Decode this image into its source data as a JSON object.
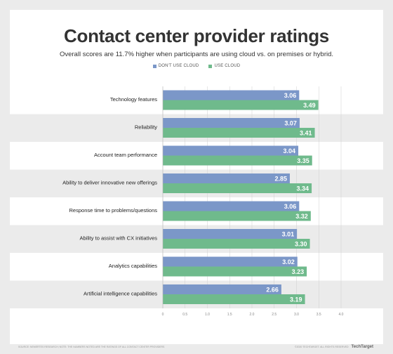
{
  "footer": {
    "source": "SOURCE: NEMERTES RESEARCH; NOTE: THE NUMBERS NOTED ARE THE RATINGS OF ALL CONTACT CENTER PROVIDERS",
    "copyright": "©2020 TECHTARGET. ALL RIGHTS RESERVED",
    "brand": "TechTarget"
  },
  "colors": {
    "no_cloud": "#7b97c8",
    "cloud": "#6fba8c",
    "band": "#ebebeb",
    "grid": "#cfcfcf"
  },
  "chart_data": {
    "type": "bar",
    "orientation": "horizontal",
    "title": "Contact center provider ratings",
    "subtitle": "Overall scores are 11.7% higher when participants are using cloud vs. on premises or hybrid.",
    "categories": [
      "Technology features",
      "Reliability",
      "Account team performance",
      "Ability to deliver innovative new offerings",
      "Response time to problems/questions",
      "Ability to assist with CX initiatives",
      "Analytics capabilities",
      "Artificial intelligence capabilities"
    ],
    "series": [
      {
        "name": "DON'T USE CLOUD",
        "values": [
          3.06,
          3.07,
          3.04,
          2.85,
          3.06,
          3.01,
          3.02,
          2.66
        ]
      },
      {
        "name": "USE CLOUD",
        "values": [
          3.49,
          3.41,
          3.35,
          3.34,
          3.32,
          3.3,
          3.23,
          3.19
        ]
      }
    ],
    "value_labels": {
      "no_cloud": [
        "3.06",
        "3.07",
        "3.04",
        "2.85",
        "3.06",
        "3.01",
        "3.02",
        "2.66"
      ],
      "cloud": [
        "3.49",
        "3.41",
        "3.35",
        "3.34",
        "3.32",
        "3.30",
        "3.23",
        "3.19"
      ]
    },
    "xlim": [
      0,
      4
    ],
    "xticks": [
      "0",
      "0.5",
      "1.0",
      "1.5",
      "2.0",
      "2.5",
      "3.0",
      "3.5",
      "4.0"
    ],
    "legend": "top-center",
    "grid": true
  }
}
